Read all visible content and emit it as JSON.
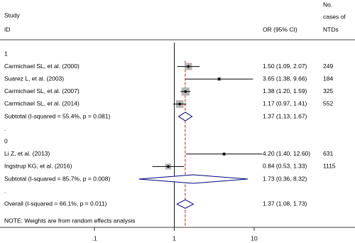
{
  "chart_data": {
    "type": "forest",
    "header": {
      "study": "Study",
      "id": "ID",
      "effect": "OR (95% CI)",
      "cases": [
        "No.",
        "cases of",
        "NTDs"
      ]
    },
    "rows": [
      {
        "kind": "label",
        "text": "1"
      },
      {
        "kind": "study",
        "name": "Carmichael SL, et al.  (2000)",
        "or": 1.5,
        "lower": 1.09,
        "upper": 2.07,
        "label": "1.50 (1.09, 2.07)",
        "cases": 249,
        "weight": 18
      },
      {
        "kind": "study",
        "name": "Suarez L, et al.  (2003)",
        "or": 3.65,
        "lower": 1.38,
        "upper": 9.66,
        "label": "3.65 (1.38, 9.66)",
        "cases": 184,
        "weight": 5
      },
      {
        "kind": "study",
        "name": "Carmichael SL, et al.  (2007)",
        "or": 1.38,
        "lower": 1.2,
        "upper": 1.59,
        "label": "1.38 (1.20, 1.59)",
        "cases": 325,
        "weight": 22
      },
      {
        "kind": "study",
        "name": "Carmichael SL, et al.  (2014)",
        "or": 1.17,
        "lower": 0.97,
        "upper": 1.41,
        "label": "1.17 (0.97, 1.41)",
        "cases": 552,
        "weight": 20
      },
      {
        "kind": "subtotal",
        "name": "Subtotal  (I-squared = 55.4%, p = 0.081)",
        "or": 1.37,
        "lower": 1.13,
        "upper": 1.67,
        "label": "1.37 (1.13, 1.67)"
      },
      {
        "kind": "label",
        "text": "."
      },
      {
        "kind": "label",
        "text": "0"
      },
      {
        "kind": "study",
        "name": "Li Z, et al.  (2013)",
        "or": 4.2,
        "lower": 1.4,
        "upper": 12.6,
        "label": "4.20 (1.40, 12.60)",
        "cases": 631,
        "weight": 4
      },
      {
        "kind": "study",
        "name": "Ingstrup KG, et al.  (2016)",
        "or": 0.84,
        "lower": 0.53,
        "upper": 1.33,
        "label": "0.84 (0.53, 1.33)",
        "cases": 1115,
        "weight": 12
      },
      {
        "kind": "subtotal",
        "name": "Subtotal  (I-squared = 85.7%, p = 0.008)",
        "or": 1.73,
        "lower": 0.36,
        "upper": 8.32,
        "label": "1.73 (0.36, 8.32)"
      },
      {
        "kind": "label",
        "text": "."
      },
      {
        "kind": "overall",
        "name": "Overall  (I-squared = 66.1%, p = 0.011)",
        "or": 1.37,
        "lower": 1.08,
        "upper": 1.73,
        "label": "1.37 (1.08, 1.73)"
      }
    ],
    "note": "NOTE: Weights are from random effects analysis",
    "xlim": [
      0.1,
      10
    ],
    "xticks": [
      {
        "value": 0.1,
        "label": ".1"
      },
      1,
      10
    ],
    "log_scale": true,
    "square_color": "#b4b4b4",
    "diamond_color": "#00007f",
    "overall_line_color": "#c00000"
  }
}
